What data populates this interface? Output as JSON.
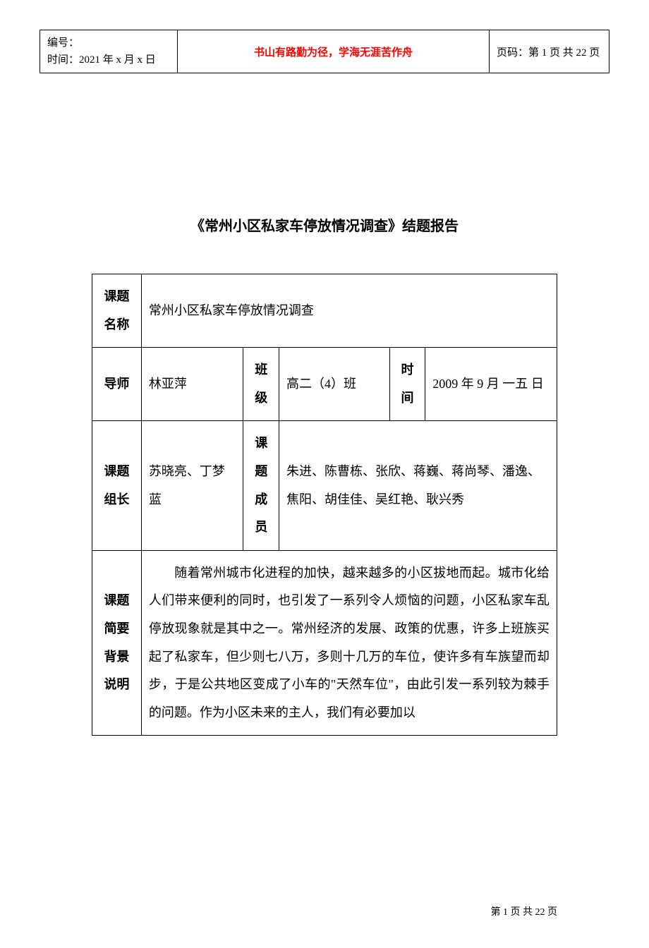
{
  "header": {
    "id_label": "编号：",
    "time_label": "时间：2021 年 x 月 x 日",
    "center_text": "书山有路勤为径，学海无涯苦作舟",
    "page_label": "页码：第 1 页 共 22 页"
  },
  "title": "《常州小区私家车停放情况调查》结题报告",
  "table": {
    "row1": {
      "label": "课题名称",
      "value": "常州小区私家车停放情况调查"
    },
    "row2": {
      "label1": "导师",
      "value1": "林亚萍",
      "label2": "班级",
      "value2": "高二（4）班",
      "label3": "时间",
      "value3": "2009 年 9 月 一五 日"
    },
    "row3": {
      "label1": "课题组长",
      "value1": "苏晓亮、丁梦蓝",
      "label2": "课题成员",
      "value2": "朱进、陈曹栋、张欣、蒋巍、蒋尚琴、潘逸、焦阳、胡佳佳、吴红艳、耿兴秀"
    },
    "row4": {
      "label": "课题简要背景说明",
      "value": "随着常州城市化进程的加快，越来越多的小区拔地而起。城市化给人们带来便利的同时，也引发了一系列令人烦恼的问题，小区私家车乱停放现象就是其中之一。常州经济的发展、政策的优惠，许多上班族买起了私家车，但少则七八万，多则十几万的车位，使许多有车族望而却步，于是公共地区变成了小车的\"天然车位\"，由此引发一系列较为棘手的问题。作为小区未来的主人，我们有必要加以"
    }
  },
  "footer": "第 1 页 共 22 页",
  "colors": {
    "text": "#000000",
    "accent": "#ff0000",
    "background": "#ffffff",
    "border": "#000000"
  },
  "fonts": {
    "body_family": "SimSun",
    "heading_family": "SimHei",
    "body_size_pt": 14,
    "title_size_pt": 15,
    "header_center_size_pt": 15
  }
}
